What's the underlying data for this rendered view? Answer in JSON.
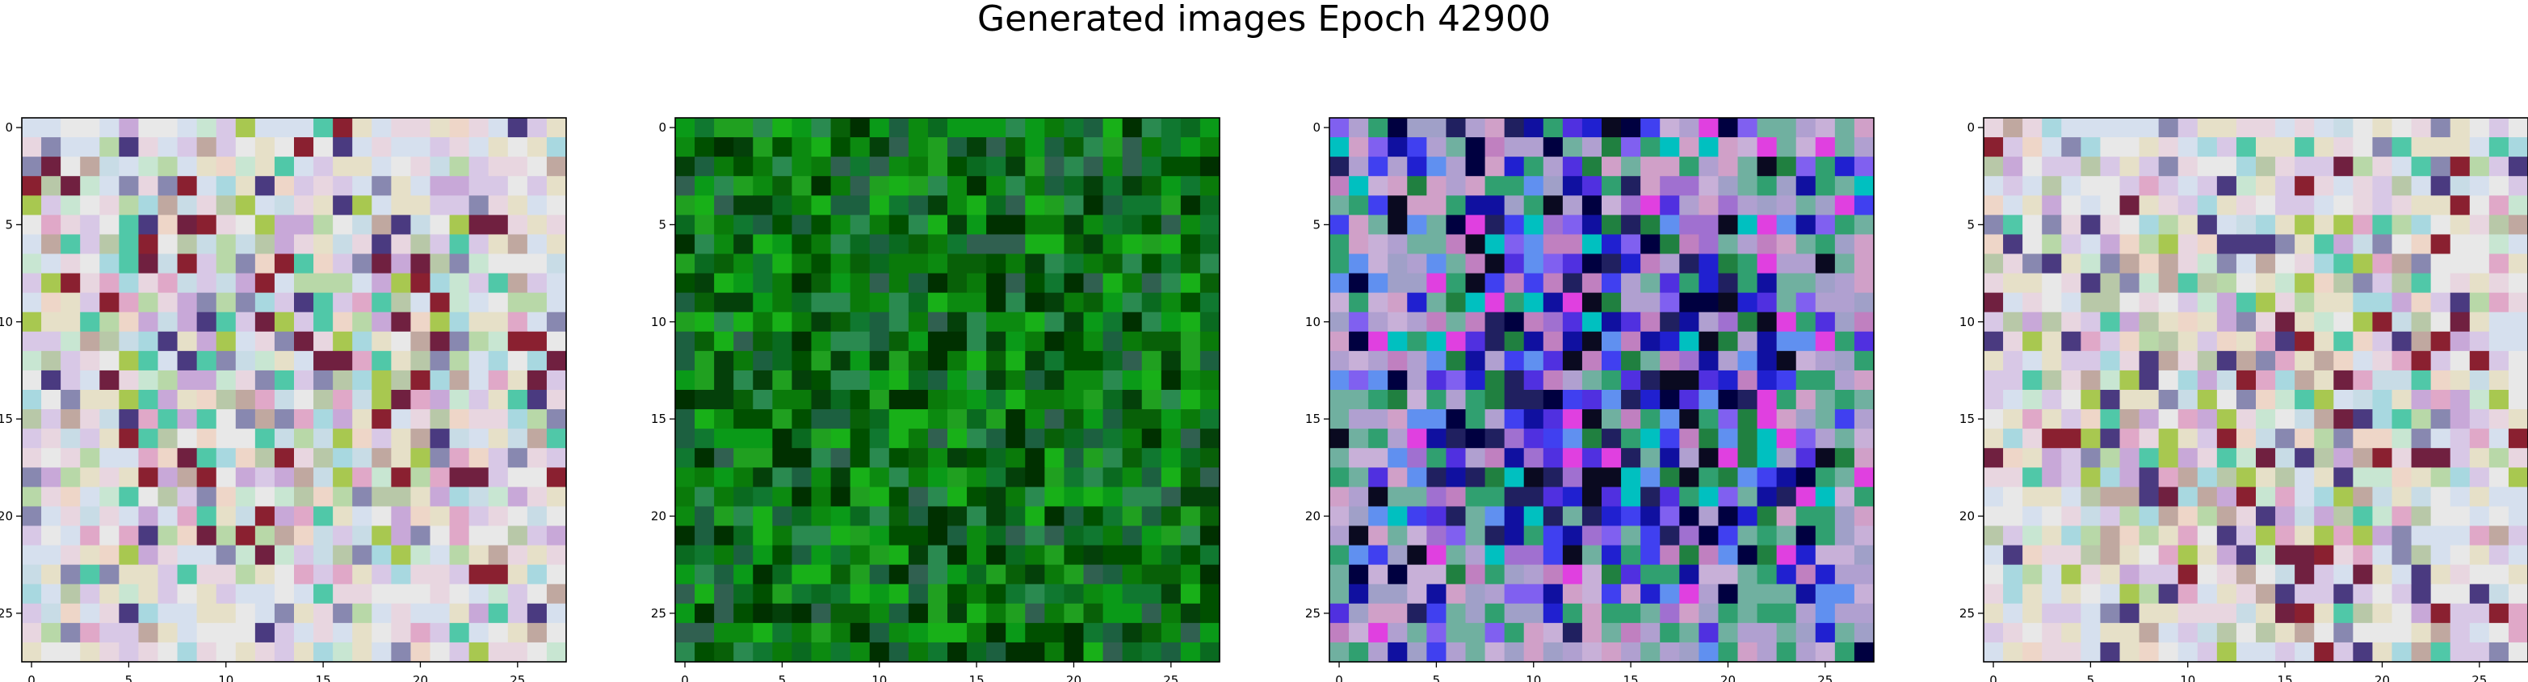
{
  "figure": {
    "title": "Generated images Epoch 42900"
  },
  "palettes": {
    "pastel": [
      "#e8d6e0",
      "#d6e0ee",
      "#c8e6d2",
      "#e6e0c8",
      "#d8c8e6",
      "#eed6c8",
      "#c8dce6",
      "#b8c8a8",
      "#e0a8c8",
      "#a8d8e0",
      "#c8a8d8",
      "#e8e8e8",
      "#c0a8a0",
      "#8888b0",
      "#4a3a80",
      "#702040",
      "#a8c850",
      "#50c8a8",
      "#8a2030",
      "#b8d8a8"
    ],
    "green": [
      "#0a7a0a",
      "#0c8a10",
      "#086008",
      "#0a9a18",
      "#005000",
      "#107830",
      "#1c6040",
      "#20a020",
      "#04400a",
      "#2a8a50",
      "#0a6a20",
      "#18b018",
      "#003000",
      "#306050"
    ],
    "blueish": [
      "#2020d0",
      "#5030e0",
      "#1010a0",
      "#4040f0",
      "#8060f0",
      "#000040",
      "#202060",
      "#30a070",
      "#70b0a0",
      "#a070d0",
      "#c080c0",
      "#0a0a20",
      "#208040",
      "#e040e0",
      "#6090f0",
      "#b0a0d0",
      "#00c0c0"
    ]
  },
  "chart_data": [
    {
      "type": "heatmap",
      "title": "",
      "xlabel": "",
      "ylabel": "",
      "xlim": [
        -0.5,
        27.5
      ],
      "ylim": [
        27.5,
        -0.5
      ],
      "xticks": [
        0,
        5,
        10,
        15,
        20,
        25
      ],
      "yticks": [
        0,
        5,
        10,
        15,
        20,
        25
      ],
      "grid_size": [
        28,
        28
      ],
      "palette": "pastel",
      "seed": 11,
      "style": "pastel"
    },
    {
      "type": "heatmap",
      "title": "",
      "xlabel": "",
      "ylabel": "",
      "xlim": [
        -0.5,
        27.5
      ],
      "ylim": [
        27.5,
        -0.5
      ],
      "xticks": [
        0,
        5,
        10,
        15,
        20,
        25
      ],
      "yticks": [
        0,
        5,
        10,
        15,
        20,
        25
      ],
      "grid_size": [
        28,
        28
      ],
      "palette": "green",
      "seed": 23,
      "style": "green"
    },
    {
      "type": "heatmap",
      "title": "",
      "xlabel": "",
      "ylabel": "",
      "xlim": [
        -0.5,
        27.5
      ],
      "ylim": [
        27.5,
        -0.5
      ],
      "xticks": [
        0,
        5,
        10,
        15,
        20,
        25
      ],
      "yticks": [
        0,
        5,
        10,
        15,
        20,
        25
      ],
      "grid_size": [
        28,
        28
      ],
      "palette": "blueish",
      "seed": 37,
      "style": "blue"
    },
    {
      "type": "heatmap",
      "title": "",
      "xlabel": "",
      "ylabel": "",
      "xlim": [
        -0.5,
        27.5
      ],
      "ylim": [
        27.5,
        -0.5
      ],
      "xticks": [
        0,
        5,
        10,
        15,
        20,
        25
      ],
      "yticks": [
        0,
        5,
        10,
        15,
        20,
        25
      ],
      "grid_size": [
        28,
        28
      ],
      "palette": "pastel",
      "seed": 53,
      "style": "pastel"
    }
  ]
}
